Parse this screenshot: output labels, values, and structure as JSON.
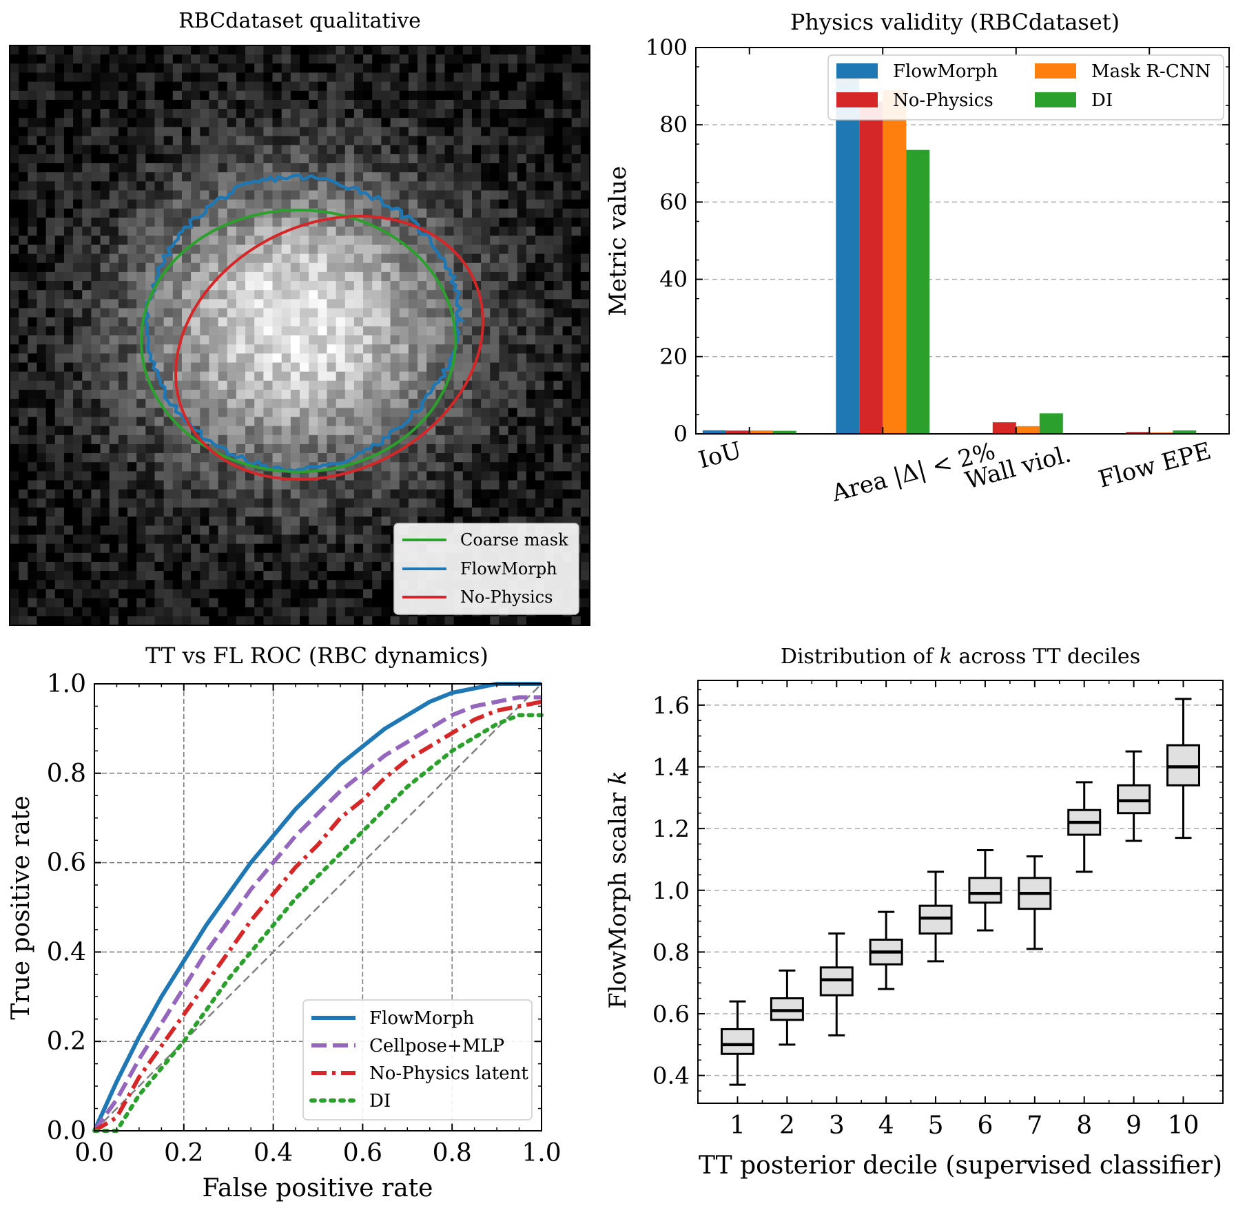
{
  "chart_data": [
    {
      "panel": "top-left",
      "type": "image-with-contours",
      "title": "RBCdataset qualitative",
      "legend": {
        "placement": "lower-right",
        "entries": [
          {
            "name": "Coarse mask",
            "color": "#2ca02c"
          },
          {
            "name": "FlowMorph",
            "color": "#1f77b4"
          },
          {
            "name": "No-Physics",
            "color": "#d62728"
          }
        ]
      }
    },
    {
      "panel": "top-right",
      "type": "bar",
      "title": "Physics validity (RBCdataset)",
      "xlabel": "",
      "ylabel": "Metric value",
      "ylim": [
        0,
        100
      ],
      "yticks": [
        "0",
        "20",
        "40",
        "60",
        "80",
        "100"
      ],
      "grid": "y-dashed",
      "categories": [
        "IoU",
        "Area |Δ| < 2%",
        "Wall viol.",
        "Flow EPE"
      ],
      "series": [
        {
          "name": "FlowMorph",
          "color": "#1f77b4",
          "values": [
            0.93,
            92,
            0.2,
            0.15
          ]
        },
        {
          "name": "No-Physics",
          "color": "#d62728",
          "values": [
            0.85,
            86,
            3.0,
            0.5
          ]
        },
        {
          "name": "Mask R-CNN",
          "color": "#ff7f0e",
          "values": [
            0.88,
            89,
            2.0,
            0.4
          ]
        },
        {
          "name": "DI",
          "color": "#2ca02c",
          "values": [
            0.79,
            73.5,
            5.3,
            0.9
          ]
        }
      ],
      "legend": {
        "placement": "upper-right",
        "ncol": 2,
        "order": [
          0,
          2,
          1,
          3
        ]
      }
    },
    {
      "panel": "bottom-left",
      "type": "line",
      "title": "TT vs FL ROC (RBC dynamics)",
      "xlabel": "False positive rate",
      "ylabel": "True positive rate",
      "xlim": [
        0,
        1
      ],
      "ylim": [
        0,
        1
      ],
      "xticks": [
        "0.0",
        "0.2",
        "0.4",
        "0.6",
        "0.8",
        "1.0"
      ],
      "yticks": [
        "0.0",
        "0.2",
        "0.4",
        "0.6",
        "0.8",
        "1.0"
      ],
      "grid": "both-dashed",
      "diagonal": {
        "x": [
          0,
          1
        ],
        "y": [
          0,
          1
        ],
        "color": "#808080"
      },
      "x": [
        0,
        0.05,
        0.1,
        0.15,
        0.2,
        0.25,
        0.3,
        0.35,
        0.4,
        0.45,
        0.5,
        0.55,
        0.6,
        0.65,
        0.7,
        0.75,
        0.8,
        0.85,
        0.9,
        0.95,
        1.0
      ],
      "series": [
        {
          "name": "FlowMorph",
          "color": "#1f77b4",
          "dash": "solid",
          "y": [
            0.0,
            0.11,
            0.21,
            0.3,
            0.38,
            0.46,
            0.53,
            0.6,
            0.66,
            0.72,
            0.77,
            0.82,
            0.86,
            0.9,
            0.93,
            0.96,
            0.98,
            0.99,
            1.0,
            1.0,
            1.0
          ]
        },
        {
          "name": "Cellpose+MLP",
          "color": "#9467bd",
          "dash": "dashed",
          "y": [
            0.0,
            0.07,
            0.16,
            0.24,
            0.32,
            0.4,
            0.47,
            0.54,
            0.6,
            0.66,
            0.71,
            0.76,
            0.8,
            0.84,
            0.87,
            0.9,
            0.93,
            0.95,
            0.96,
            0.97,
            0.97
          ]
        },
        {
          "name": "No-Physics latent",
          "color": "#d62728",
          "dash": "dashdot",
          "y": [
            0.0,
            0.03,
            0.12,
            0.19,
            0.26,
            0.33,
            0.4,
            0.47,
            0.53,
            0.59,
            0.64,
            0.7,
            0.74,
            0.79,
            0.83,
            0.86,
            0.89,
            0.92,
            0.94,
            0.95,
            0.96
          ]
        },
        {
          "name": "DI",
          "color": "#2ca02c",
          "dash": "dotted",
          "y": [
            0.0,
            0.0,
            0.08,
            0.14,
            0.2,
            0.27,
            0.34,
            0.4,
            0.46,
            0.52,
            0.57,
            0.62,
            0.67,
            0.72,
            0.77,
            0.81,
            0.85,
            0.88,
            0.91,
            0.93,
            0.93
          ]
        }
      ],
      "legend": {
        "placement": "lower-right"
      }
    },
    {
      "panel": "bottom-right",
      "type": "box",
      "title": "Distribution of k across TT deciles",
      "title_parts": [
        "Distribution of ",
        "k",
        " across TT deciles"
      ],
      "xlabel": "TT posterior decile (supervised classifier)",
      "ylabel": "FlowMorph scalar k",
      "ylabel_parts": [
        "FlowMorph scalar ",
        "k"
      ],
      "ylim": [
        0.31,
        1.68
      ],
      "yticks": [
        "0.4",
        "0.6",
        "0.8",
        "1.0",
        "1.2",
        "1.4",
        "1.6"
      ],
      "grid": "y-dashed",
      "categories": [
        "1",
        "2",
        "3",
        "4",
        "5",
        "6",
        "7",
        "8",
        "9",
        "10"
      ],
      "boxes": [
        {
          "min": 0.37,
          "q1": 0.47,
          "median": 0.5,
          "q3": 0.55,
          "max": 0.64
        },
        {
          "min": 0.5,
          "q1": 0.58,
          "median": 0.61,
          "q3": 0.65,
          "max": 0.74
        },
        {
          "min": 0.53,
          "q1": 0.66,
          "median": 0.71,
          "q3": 0.75,
          "max": 0.86
        },
        {
          "min": 0.68,
          "q1": 0.76,
          "median": 0.8,
          "q3": 0.84,
          "max": 0.93
        },
        {
          "min": 0.77,
          "q1": 0.86,
          "median": 0.91,
          "q3": 0.95,
          "max": 1.06
        },
        {
          "min": 0.87,
          "q1": 0.96,
          "median": 0.99,
          "q3": 1.04,
          "max": 1.13
        },
        {
          "min": 0.81,
          "q1": 0.94,
          "median": 0.99,
          "q3": 1.04,
          "max": 1.11
        },
        {
          "min": 1.06,
          "q1": 1.18,
          "median": 1.22,
          "q3": 1.26,
          "max": 1.35
        },
        {
          "min": 1.16,
          "q1": 1.25,
          "median": 1.29,
          "q3": 1.34,
          "max": 1.45
        },
        {
          "min": 1.17,
          "q1": 1.34,
          "median": 1.4,
          "q3": 1.47,
          "max": 1.62
        }
      ],
      "box_color": "#e0e0e0"
    }
  ]
}
